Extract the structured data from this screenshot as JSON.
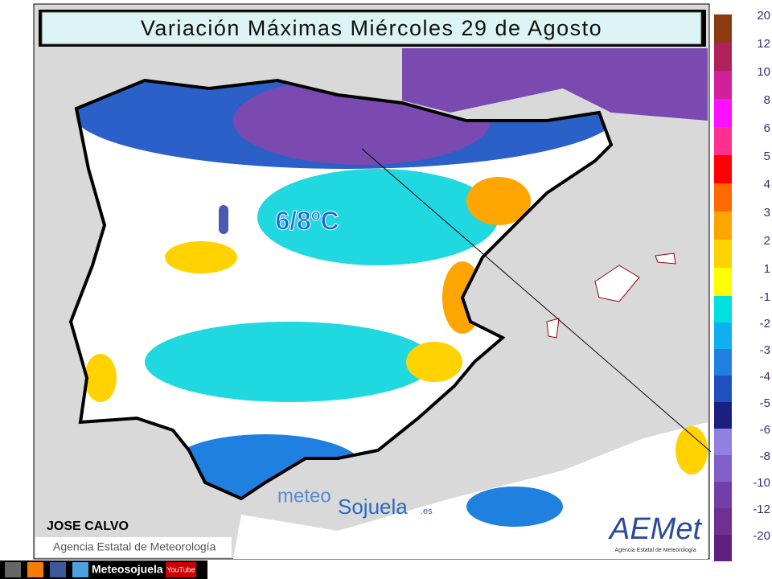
{
  "header": {
    "title": "Variación Máximas Miércoles 29 de Agosto"
  },
  "legend": {
    "warm": [
      {
        "value": 20,
        "color": "#8b3a12"
      },
      {
        "value": 12,
        "color": "#b0205a"
      },
      {
        "value": 10,
        "color": "#d0209a"
      },
      {
        "value": 8,
        "color": "#ff10ff"
      },
      {
        "value": 6,
        "color": "#ff3090"
      },
      {
        "value": 5,
        "color": "#ff0000"
      },
      {
        "value": 4,
        "color": "#ff6a00"
      },
      {
        "value": 3,
        "color": "#ffa500"
      },
      {
        "value": 2,
        "color": "#ffd200"
      },
      {
        "value": 1,
        "color": "#ffff00"
      }
    ],
    "cold": [
      {
        "value": -1,
        "color": "#00e0e0"
      },
      {
        "value": -2,
        "color": "#10b0f0"
      },
      {
        "value": -3,
        "color": "#2080e0"
      },
      {
        "value": -4,
        "color": "#2050c0"
      },
      {
        "value": -5,
        "color": "#1a2080"
      },
      {
        "value": -6,
        "color": "#9080e0"
      },
      {
        "value": -8,
        "color": "#8060c8"
      },
      {
        "value": -10,
        "color": "#7040a8"
      },
      {
        "value": -12,
        "color": "#703090"
      },
      {
        "value": -20,
        "color": "#602080"
      }
    ]
  },
  "annotation": "6/8ºC",
  "author": "JOSE CALVO",
  "credit": "Agencia Estatal de Meteorología",
  "watermark": {
    "prefix": "meteo",
    "name": "Sojuela",
    "suffix": ".es"
  },
  "logo": {
    "name": "AEMet",
    "caption": "Agencia Estatal de Meteorología"
  },
  "footer": {
    "site": "Meteosojuela",
    "video": "YouTube"
  }
}
